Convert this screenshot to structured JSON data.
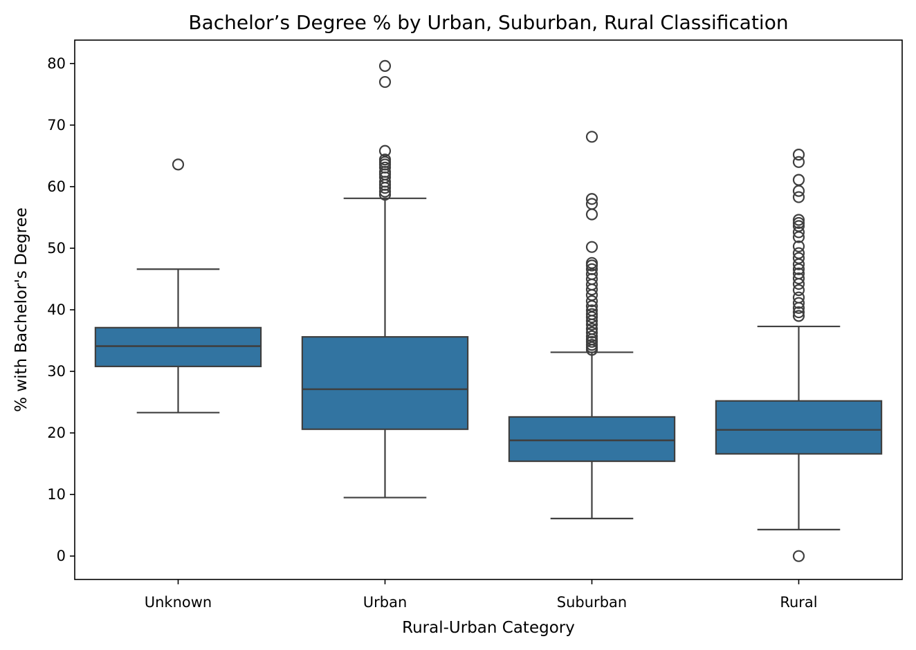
{
  "chart_data": {
    "type": "box",
    "title": "Bachelor’s Degree % by Urban, Suburban, Rural Classification",
    "xlabel": "Rural-Urban Category",
    "ylabel": "% with Bachelor's Degree",
    "ylim": [
      -3.8,
      83.8
    ],
    "yticks": [
      0,
      10,
      20,
      30,
      40,
      50,
      60,
      70,
      80
    ],
    "grid": false,
    "box_color": "#3274a1",
    "line_color": "#3f3f3f",
    "categories": [
      "Unknown",
      "Urban",
      "Suburban",
      "Rural"
    ],
    "boxes": [
      {
        "category": "Unknown",
        "whisker_low": 23.3,
        "q1": 30.8,
        "median": 34.1,
        "q3": 37.1,
        "whisker_high": 46.6,
        "outliers": [
          63.6
        ]
      },
      {
        "category": "Urban",
        "whisker_low": 9.5,
        "q1": 20.6,
        "median": 27.1,
        "q3": 35.6,
        "whisker_high": 58.1,
        "outliers": [
          58.7,
          59.2,
          59.8,
          60.3,
          60.8,
          61.5,
          62.0,
          62.4,
          63.1,
          63.6,
          64.0,
          64.4,
          65.8,
          77.0,
          79.6
        ]
      },
      {
        "category": "Suburban",
        "whisker_low": 6.1,
        "q1": 15.4,
        "median": 18.8,
        "q3": 22.6,
        "whisker_high": 33.1,
        "outliers": [
          33.5,
          33.9,
          34.3,
          34.8,
          35.2,
          35.7,
          36.3,
          36.9,
          37.6,
          38.2,
          38.8,
          39.3,
          39.9,
          40.6,
          41.4,
          42.4,
          43.3,
          44.1,
          45.0,
          45.8,
          46.6,
          47.2,
          47.6,
          50.2,
          55.5,
          57.2,
          58.0,
          68.1
        ]
      },
      {
        "category": "Rural",
        "whisker_low": 4.3,
        "q1": 16.6,
        "median": 20.5,
        "q3": 25.2,
        "whisker_high": 37.3,
        "outliers": [
          0.0,
          39.0,
          39.6,
          40.3,
          41.1,
          42.0,
          43.2,
          44.2,
          45.1,
          45.9,
          46.6,
          47.4,
          48.4,
          49.2,
          50.3,
          51.8,
          52.6,
          53.6,
          54.1,
          54.6,
          58.3,
          59.3,
          61.1,
          64.0,
          65.2
        ]
      }
    ]
  }
}
